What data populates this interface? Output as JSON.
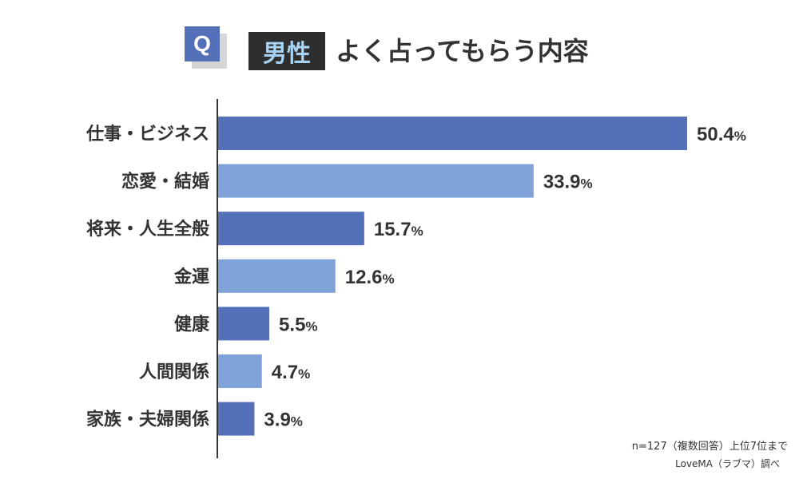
{
  "header": {
    "q_label": "Q",
    "tag": "男性",
    "title": "よく占ってもらう内容"
  },
  "chart_data": {
    "type": "bar",
    "orientation": "horizontal",
    "categories": [
      "仕事・ビジネス",
      "恋愛・結婚",
      "将来・人生全般",
      "金運",
      "健康",
      "人間関係",
      "家族・夫婦関係"
    ],
    "values": [
      50.4,
      33.9,
      15.7,
      12.6,
      5.5,
      4.7,
      3.9
    ],
    "unit": "%",
    "xlim": [
      0,
      50.4
    ],
    "grid": false,
    "colors": [
      "#5470b8",
      "#7fa3d8"
    ]
  },
  "footnotes": {
    "sample": "n=127（複数回答）上位7位まで",
    "source": "LoveMA（ラブマ）調べ"
  }
}
